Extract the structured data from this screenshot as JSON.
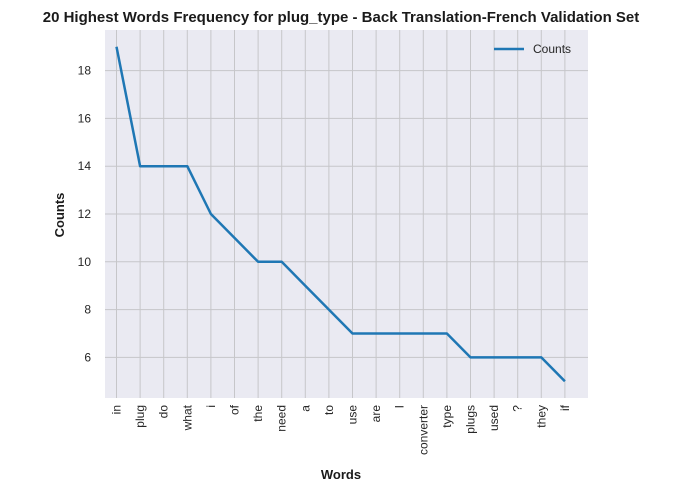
{
  "chart_data": {
    "type": "line",
    "title": "20 Highest Words Frequency for plug_type - Back Translation-French Validation Set",
    "xlabel": "Words",
    "ylabel": "Counts",
    "categories": [
      "in",
      "plug",
      "do",
      "what",
      "i",
      "of",
      "the",
      "need",
      "a",
      "to",
      "use",
      "are",
      "I",
      "converter",
      "type",
      "plugs",
      "used",
      "?",
      "they",
      "if"
    ],
    "series": [
      {
        "name": "Counts",
        "values": [
          19,
          14,
          14,
          14,
          12,
          11,
          10,
          10,
          9,
          8,
          7,
          7,
          7,
          7,
          7,
          6,
          6,
          6,
          6,
          5
        ],
        "color": "#1f77b4"
      }
    ],
    "ylim": [
      4.3,
      19.7
    ],
    "yticks": [
      6,
      8,
      10,
      12,
      14,
      16,
      18
    ],
    "grid": true,
    "legend": "top-right",
    "background": "#eaeaf2",
    "grid_color": "#c6c6c9"
  }
}
